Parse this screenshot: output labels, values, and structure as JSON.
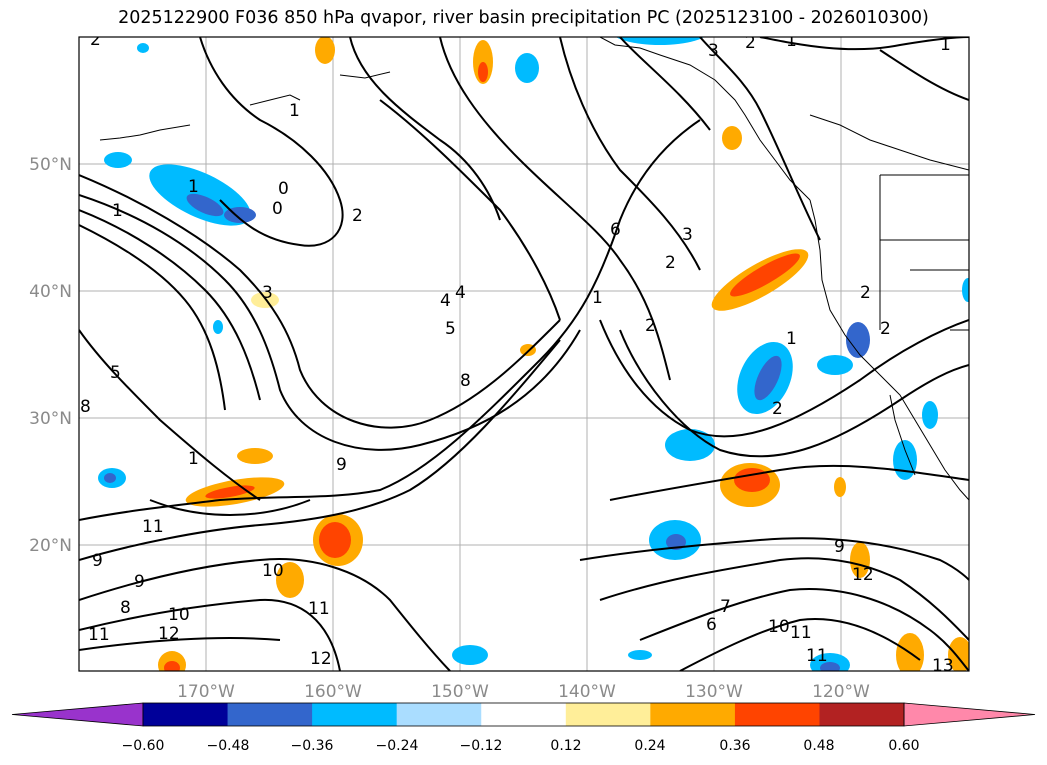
{
  "title": "2025122900 F036 850 hPa qvapor, river basin precipitation PC (2025123100 - 2026010300)",
  "lat_labels": [
    "50°N",
    "40°N",
    "30°N",
    "20°N"
  ],
  "lon_labels": [
    "170°W",
    "160°W",
    "150°W",
    "140°W",
    "130°W",
    "120°W"
  ],
  "colorbar": {
    "ticks": [
      "−0.60",
      "−0.48",
      "−0.36",
      "−0.24",
      "−0.12",
      "0.12",
      "0.24",
      "0.36",
      "0.48",
      "0.60"
    ],
    "colors": [
      "#9933cc",
      "#000099",
      "#3366cc",
      "#00bbff",
      "#aaddff",
      "#ffffff",
      "#ffee99",
      "#ffaa00",
      "#ff4400",
      "#b22222",
      "#ff88aa"
    ]
  },
  "contour_labels": [
    "2",
    "3",
    "2",
    "1",
    "1",
    "1",
    "0",
    "0",
    "2",
    "1",
    "1",
    "3",
    "4",
    "4",
    "5",
    "5",
    "6",
    "2",
    "3",
    "1",
    "2",
    "8",
    "8",
    "9",
    "1",
    "11",
    "10",
    "9",
    "8",
    "11",
    "12",
    "12",
    "10",
    "9",
    "11",
    "7",
    "6",
    "10",
    "11",
    "12",
    "9",
    "2",
    "2",
    "2",
    "1",
    "11",
    "13"
  ]
}
